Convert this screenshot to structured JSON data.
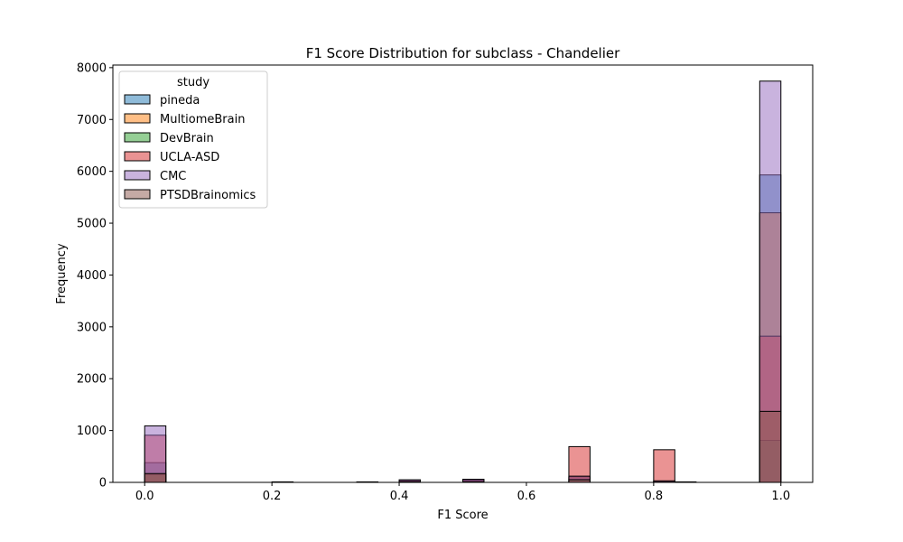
{
  "chart_data": {
    "type": "bar",
    "subtype": "overlaid-histogram",
    "title": "F1 Score Distribution for subclass - Chandelier",
    "xlabel": "F1 Score",
    "ylabel": "Frequency",
    "xlim": [
      -0.05,
      1.05
    ],
    "ylim": [
      0,
      8050
    ],
    "xticks": [
      0.0,
      0.2,
      0.4,
      0.6,
      0.8,
      1.0
    ],
    "xtick_labels": [
      "0.0",
      "0.2",
      "0.4",
      "0.6",
      "0.8",
      "1.0"
    ],
    "yticks": [
      0,
      1000,
      2000,
      3000,
      4000,
      5000,
      6000,
      7000,
      8000
    ],
    "ytick_labels": [
      "0",
      "1000",
      "2000",
      "3000",
      "4000",
      "5000",
      "6000",
      "7000",
      "8000"
    ],
    "bin_edges": [
      0.0,
      0.0333,
      0.0667,
      0.1,
      0.1333,
      0.1667,
      0.2,
      0.2333,
      0.2667,
      0.3,
      0.3333,
      0.3667,
      0.4,
      0.4333,
      0.4667,
      0.5,
      0.5333,
      0.5667,
      0.6,
      0.6333,
      0.6667,
      0.7,
      0.7333,
      0.7667,
      0.8,
      0.8333,
      0.8667,
      0.9,
      0.9333,
      0.9667,
      1.0
    ],
    "legend": {
      "title": "study",
      "location": "upper-left"
    },
    "series": [
      {
        "name": "pineda",
        "color": "#1f77b4",
        "values": [
          380,
          0,
          0,
          0,
          0,
          0,
          0,
          0,
          0,
          0,
          0,
          0,
          30,
          0,
          0,
          40,
          0,
          0,
          0,
          0,
          90,
          0,
          0,
          0,
          20,
          0,
          0,
          0,
          0,
          5930
        ]
      },
      {
        "name": "MultiomeBrain",
        "color": "#ff7f0e",
        "values": [
          160,
          0,
          0,
          0,
          0,
          0,
          0,
          0,
          0,
          0,
          0,
          0,
          20,
          0,
          0,
          20,
          0,
          0,
          0,
          0,
          110,
          0,
          0,
          0,
          10,
          0,
          0,
          0,
          0,
          5200
        ]
      },
      {
        "name": "DevBrain",
        "color": "#2ca02c",
        "values": [
          150,
          0,
          0,
          0,
          0,
          0,
          0,
          0,
          0,
          0,
          0,
          0,
          15,
          0,
          0,
          15,
          0,
          0,
          0,
          0,
          60,
          0,
          0,
          0,
          5,
          0,
          0,
          0,
          0,
          810
        ]
      },
      {
        "name": "UCLA-ASD",
        "color": "#d62728",
        "values": [
          910,
          0,
          0,
          0,
          0,
          0,
          10,
          0,
          0,
          0,
          10,
          0,
          40,
          0,
          0,
          50,
          0,
          0,
          0,
          0,
          690,
          0,
          0,
          0,
          630,
          10,
          0,
          0,
          0,
          2820
        ]
      },
      {
        "name": "CMC",
        "color": "#9467bd",
        "values": [
          1090,
          0,
          0,
          0,
          0,
          0,
          0,
          0,
          0,
          0,
          0,
          0,
          50,
          0,
          0,
          60,
          0,
          0,
          0,
          0,
          120,
          0,
          0,
          0,
          30,
          0,
          0,
          0,
          0,
          7740
        ]
      },
      {
        "name": "PTSDBrainomics",
        "color": "#8c564b",
        "values": [
          170,
          0,
          0,
          0,
          0,
          0,
          0,
          0,
          0,
          0,
          0,
          0,
          10,
          0,
          0,
          10,
          0,
          0,
          0,
          0,
          50,
          0,
          0,
          0,
          5,
          0,
          0,
          0,
          0,
          1370
        ]
      }
    ]
  }
}
